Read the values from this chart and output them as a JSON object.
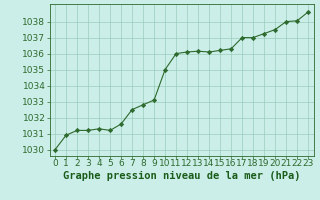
{
  "x": [
    0,
    1,
    2,
    3,
    4,
    5,
    6,
    7,
    8,
    9,
    10,
    11,
    12,
    13,
    14,
    15,
    16,
    17,
    18,
    19,
    20,
    21,
    22,
    23
  ],
  "y": [
    1030.0,
    1030.9,
    1031.2,
    1031.2,
    1031.3,
    1031.2,
    1031.6,
    1032.5,
    1032.8,
    1033.1,
    1035.0,
    1036.0,
    1036.1,
    1036.15,
    1036.1,
    1036.2,
    1036.3,
    1037.0,
    1037.0,
    1037.25,
    1037.5,
    1038.0,
    1038.05,
    1038.6
  ],
  "line_color": "#2d6a2d",
  "marker": "D",
  "marker_size": 2.2,
  "bg_color": "#cceee8",
  "grid_color": "#99ccbb",
  "xlabel": "Graphe pression niveau de la mer (hPa)",
  "xlabel_color": "#1a5c1a",
  "xlabel_fontsize": 7.5,
  "tick_color": "#2d6a2d",
  "tick_fontsize": 6.5,
  "ylim": [
    1029.6,
    1039.1
  ],
  "yticks": [
    1030,
    1031,
    1032,
    1033,
    1034,
    1035,
    1036,
    1037,
    1038
  ],
  "xlim": [
    -0.5,
    23.5
  ],
  "xticks": [
    0,
    1,
    2,
    3,
    4,
    5,
    6,
    7,
    8,
    9,
    10,
    11,
    12,
    13,
    14,
    15,
    16,
    17,
    18,
    19,
    20,
    21,
    22,
    23
  ]
}
